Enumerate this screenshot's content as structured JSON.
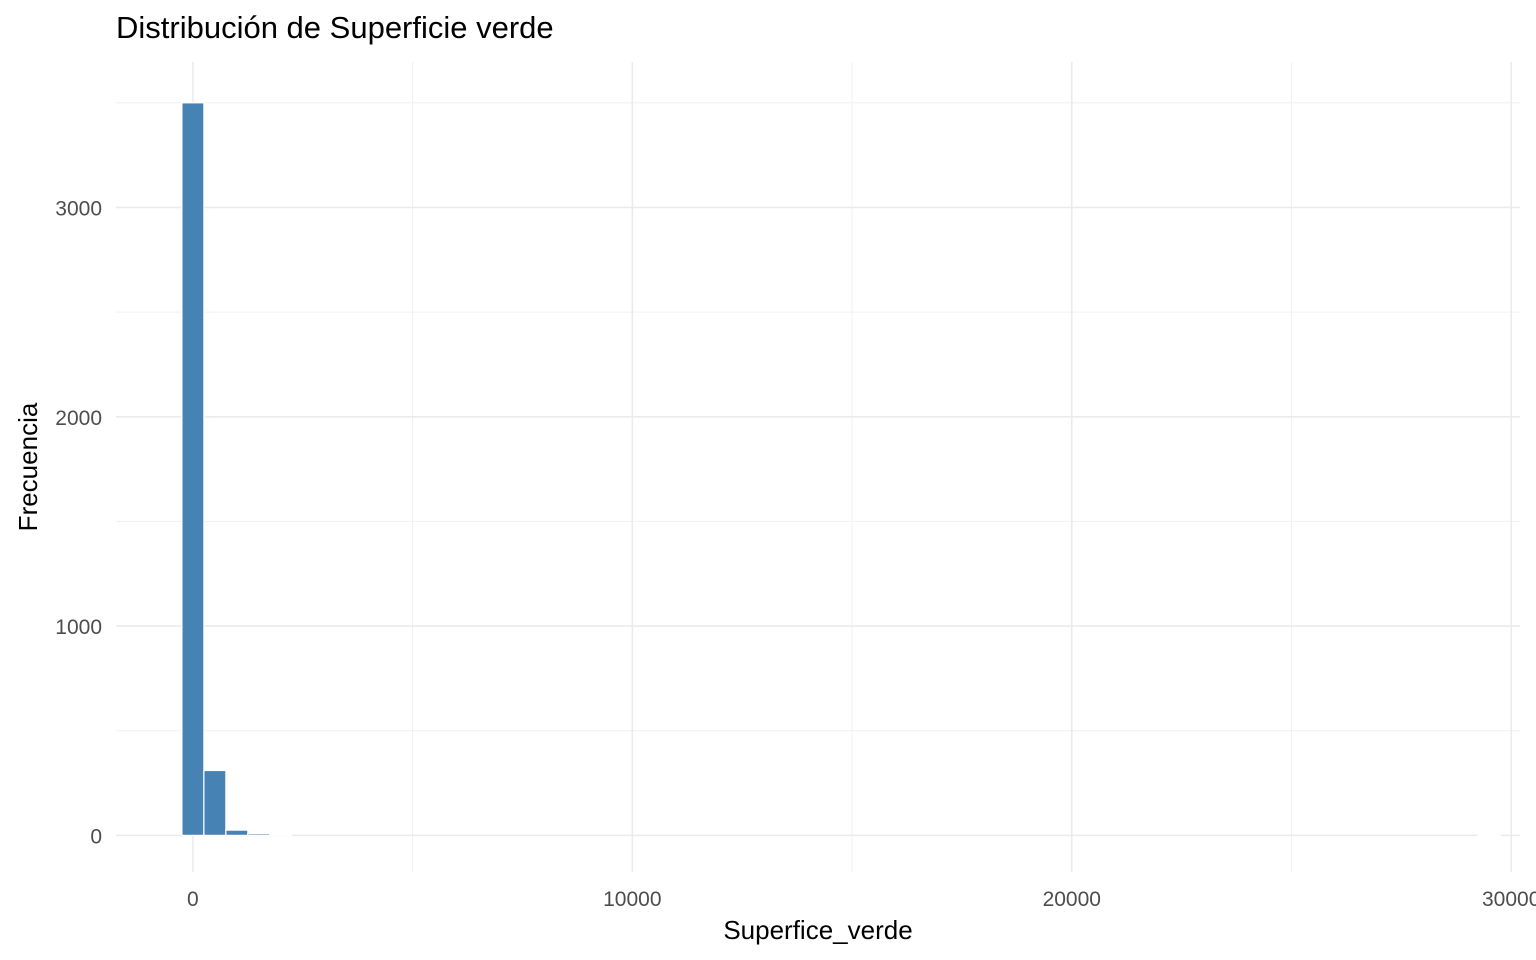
{
  "chart_data": {
    "type": "bar",
    "title": "Distribución de Superficie verde",
    "xlabel": "Superfice_verde",
    "ylabel": "Frecuencia",
    "bar_color": "#4682B4",
    "background": "#ffffff",
    "grid": true,
    "legend": "none",
    "xlim": [
      -1750,
      30200
    ],
    "ylim": [
      -175,
      3695
    ],
    "x_ticks": [
      0,
      10000,
      20000,
      30000
    ],
    "x_tick_labels": [
      "0",
      "10000",
      "20000",
      "30000"
    ],
    "y_ticks": [
      0,
      1000,
      2000,
      3000
    ],
    "y_tick_labels": [
      "0",
      "1000",
      "2000",
      "3000"
    ],
    "bin_width": 500,
    "bins": [
      {
        "x": 0,
        "count": 3500
      },
      {
        "x": 500,
        "count": 310
      },
      {
        "x": 1000,
        "count": 25
      },
      {
        "x": 1500,
        "count": 8
      },
      {
        "x": 2000,
        "count": 5
      },
      {
        "x": 29500,
        "count": 1
      }
    ]
  }
}
